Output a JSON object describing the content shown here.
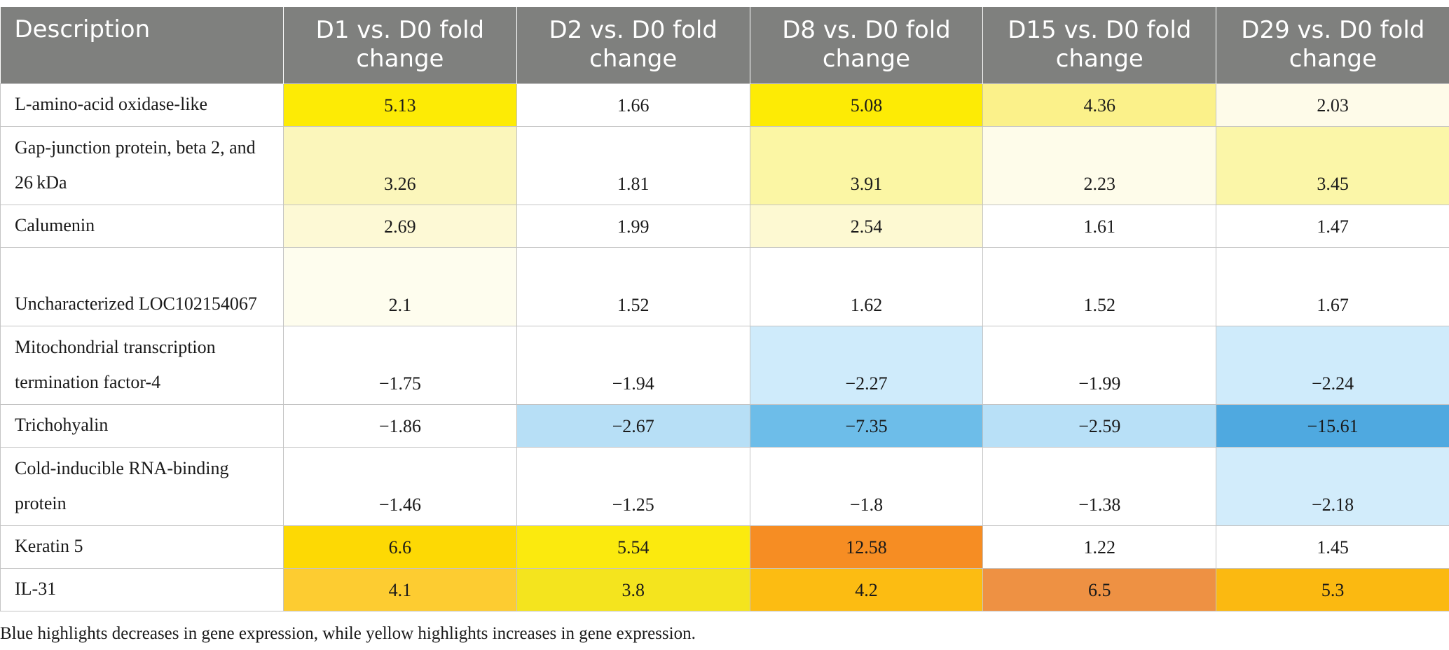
{
  "table": {
    "headers": [
      "Description",
      "D1 vs. D0 fold change",
      "D2 vs. D0 fold change",
      "D8 vs. D0 fold change",
      "D15 vs. D0 fold change",
      "D29 vs. D0 fold change"
    ],
    "rows": [
      {
        "description": "L-amino-acid oxidase-like",
        "values": [
          "5.13",
          "1.66",
          "5.08",
          "4.36",
          "2.03"
        ],
        "colors": [
          "#fdeb05",
          "#ffffff",
          "#fdeb05",
          "#fbf18a",
          "#fefbe9"
        ]
      },
      {
        "description": "Gap-junction protein, beta 2, and 26 kDa",
        "values": [
          "3.26",
          "1.81",
          "3.91",
          "2.23",
          "3.45"
        ],
        "colors": [
          "#fbf6bb",
          "#ffffff",
          "#fbf6a4",
          "#fefcea",
          "#fbf6a8"
        ]
      },
      {
        "description": "Calumenin",
        "values": [
          "2.69",
          "1.99",
          "2.54",
          "1.61",
          "1.47"
        ],
        "colors": [
          "#fdf9d5",
          "#ffffff",
          "#fdf9d2",
          "#ffffff",
          "#ffffff"
        ]
      },
      {
        "description": "Uncharacterized LOC102154067",
        "values": [
          "2.1",
          "1.52",
          "1.62",
          "1.52",
          "1.67"
        ],
        "colors": [
          "#fefdee",
          "#ffffff",
          "#ffffff",
          "#ffffff",
          "#ffffff"
        ]
      },
      {
        "description": "Mitochondrial transcription termination factor-4",
        "values": [
          "−1.75",
          "−1.94",
          "−2.27",
          "−1.99",
          "−2.24"
        ],
        "colors": [
          "#ffffff",
          "#ffffff",
          "#cfebfb",
          "#ffffff",
          "#cfebfb"
        ]
      },
      {
        "description": "Trichohyalin",
        "values": [
          "−1.86",
          "−2.67",
          "−7.35",
          "−2.59",
          "−15.61"
        ],
        "colors": [
          "#ffffff",
          "#b7dff6",
          "#6dbde9",
          "#b8e0f7",
          "#4fa9e0"
        ]
      },
      {
        "description": "Cold-inducible RNA-binding protein",
        "values": [
          "−1.46",
          "−1.25",
          "−1.8",
          "−1.38",
          "−2.18"
        ],
        "colors": [
          "#ffffff",
          "#ffffff",
          "#ffffff",
          "#ffffff",
          "#d2ecfb"
        ]
      },
      {
        "description": "Keratin 5",
        "values": [
          "6.6",
          "5.54",
          "12.58",
          "1.22",
          "1.45"
        ],
        "colors": [
          "#fdd904",
          "#fbea0e",
          "#f68d23",
          "#ffffff",
          "#ffffff"
        ]
      },
      {
        "description": "IL-31",
        "values": [
          "4.1",
          "3.8",
          "4.2",
          "6.5",
          "5.3"
        ],
        "colors": [
          "#fdcc31",
          "#f4e41e",
          "#fcbc12",
          "#ee9143",
          "#fbb911"
        ]
      }
    ]
  },
  "footnote": "Blue highlights decreases in gene expression, while yellow highlights increases in gene expression."
}
